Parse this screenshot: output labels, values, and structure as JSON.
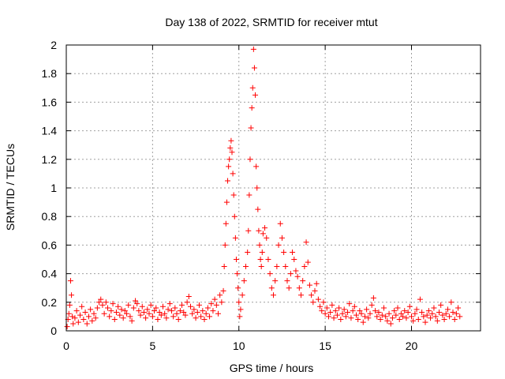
{
  "chart_data": {
    "type": "scatter",
    "title": "Day 138 of 2022, SRMTID for receiver mtut",
    "xlabel": "GPS time / hours",
    "ylabel": "SRMTID / TECUs",
    "xlim": [
      0,
      24
    ],
    "ylim": [
      0,
      2
    ],
    "xticks": [
      0,
      5,
      10,
      15,
      20
    ],
    "xtick_labels": [
      "0",
      "5",
      "10",
      "15",
      "20"
    ],
    "yticks": [
      0,
      0.2,
      0.4,
      0.6,
      0.8,
      1,
      1.2,
      1.4,
      1.6,
      1.8,
      2
    ],
    "ytick_labels": [
      "0",
      "0.2",
      "0.4",
      "0.6",
      "0.8",
      "1",
      "1.2",
      "1.4",
      "1.6",
      "1.8",
      "2"
    ],
    "grid": true,
    "marker": "+",
    "color": "#ff0000",
    "series": [
      {
        "name": "SRMTID",
        "points": [
          [
            0.05,
            0.03
          ],
          [
            0.1,
            0.08
          ],
          [
            0.15,
            0.12
          ],
          [
            0.2,
            0.18
          ],
          [
            0.25,
            0.35
          ],
          [
            0.3,
            0.25
          ],
          [
            0.35,
            0.1
          ],
          [
            0.4,
            0.05
          ],
          [
            0.5,
            0.09
          ],
          [
            0.6,
            0.14
          ],
          [
            0.7,
            0.06
          ],
          [
            0.8,
            0.11
          ],
          [
            0.9,
            0.17
          ],
          [
            1.0,
            0.08
          ],
          [
            1.1,
            0.13
          ],
          [
            1.2,
            0.05
          ],
          [
            1.3,
            0.1
          ],
          [
            1.4,
            0.15
          ],
          [
            1.5,
            0.07
          ],
          [
            1.6,
            0.12
          ],
          [
            1.7,
            0.09
          ],
          [
            1.8,
            0.16
          ],
          [
            1.9,
            0.2
          ],
          [
            2.0,
            0.22
          ],
          [
            2.1,
            0.18
          ],
          [
            2.2,
            0.12
          ],
          [
            2.3,
            0.2
          ],
          [
            2.4,
            0.16
          ],
          [
            2.5,
            0.1
          ],
          [
            2.6,
            0.14
          ],
          [
            2.7,
            0.19
          ],
          [
            2.8,
            0.08
          ],
          [
            2.9,
            0.13
          ],
          [
            3.0,
            0.17
          ],
          [
            3.1,
            0.11
          ],
          [
            3.2,
            0.15
          ],
          [
            3.3,
            0.09
          ],
          [
            3.4,
            0.14
          ],
          [
            3.5,
            0.12
          ],
          [
            3.6,
            0.18
          ],
          [
            3.7,
            0.1
          ],
          [
            3.8,
            0.07
          ],
          [
            3.9,
            0.16
          ],
          [
            4.0,
            0.21
          ],
          [
            4.1,
            0.19
          ],
          [
            4.2,
            0.14
          ],
          [
            4.3,
            0.11
          ],
          [
            4.4,
            0.17
          ],
          [
            4.5,
            0.13
          ],
          [
            4.6,
            0.09
          ],
          [
            4.7,
            0.15
          ],
          [
            4.8,
            0.12
          ],
          [
            4.9,
            0.18
          ],
          [
            5.0,
            0.1
          ],
          [
            5.1,
            0.14
          ],
          [
            5.2,
            0.16
          ],
          [
            5.3,
            0.08
          ],
          [
            5.4,
            0.13
          ],
          [
            5.5,
            0.11
          ],
          [
            5.6,
            0.17
          ],
          [
            5.7,
            0.12
          ],
          [
            5.8,
            0.09
          ],
          [
            5.9,
            0.15
          ],
          [
            6.0,
            0.19
          ],
          [
            6.1,
            0.14
          ],
          [
            6.2,
            0.1
          ],
          [
            6.3,
            0.16
          ],
          [
            6.4,
            0.12
          ],
          [
            6.5,
            0.08
          ],
          [
            6.6,
            0.14
          ],
          [
            6.7,
            0.18
          ],
          [
            6.8,
            0.13
          ],
          [
            6.9,
            0.11
          ],
          [
            7.0,
            0.2
          ],
          [
            7.1,
            0.24
          ],
          [
            7.2,
            0.17
          ],
          [
            7.3,
            0.12
          ],
          [
            7.4,
            0.15
          ],
          [
            7.5,
            0.09
          ],
          [
            7.6,
            0.13
          ],
          [
            7.7,
            0.18
          ],
          [
            7.8,
            0.1
          ],
          [
            7.9,
            0.14
          ],
          [
            8.0,
            0.08
          ],
          [
            8.1,
            0.12
          ],
          [
            8.2,
            0.16
          ],
          [
            8.3,
            0.1
          ],
          [
            8.4,
            0.19
          ],
          [
            8.5,
            0.14
          ],
          [
            8.6,
            0.22
          ],
          [
            8.7,
            0.18
          ],
          [
            8.8,
            0.12
          ],
          [
            8.9,
            0.25
          ],
          [
            9.0,
            0.2
          ],
          [
            9.1,
            0.28
          ],
          [
            9.15,
            0.45
          ],
          [
            9.2,
            0.6
          ],
          [
            9.25,
            0.75
          ],
          [
            9.3,
            0.9
          ],
          [
            9.35,
            1.05
          ],
          [
            9.4,
            1.15
          ],
          [
            9.45,
            1.2
          ],
          [
            9.5,
            1.28
          ],
          [
            9.55,
            1.33
          ],
          [
            9.6,
            1.25
          ],
          [
            9.65,
            1.1
          ],
          [
            9.7,
            0.95
          ],
          [
            9.75,
            0.8
          ],
          [
            9.8,
            0.65
          ],
          [
            9.85,
            0.5
          ],
          [
            9.9,
            0.4
          ],
          [
            9.95,
            0.3
          ],
          [
            10.0,
            0.2
          ],
          [
            10.05,
            0.1
          ],
          [
            10.1,
            0.15
          ],
          [
            10.2,
            0.25
          ],
          [
            10.3,
            0.35
          ],
          [
            10.4,
            0.45
          ],
          [
            10.5,
            0.55
          ],
          [
            10.55,
            0.7
          ],
          [
            10.6,
            0.95
          ],
          [
            10.65,
            1.2
          ],
          [
            10.7,
            1.42
          ],
          [
            10.75,
            1.56
          ],
          [
            10.8,
            1.7
          ],
          [
            10.85,
            1.97
          ],
          [
            10.9,
            1.84
          ],
          [
            10.95,
            1.65
          ],
          [
            11.0,
            1.15
          ],
          [
            11.05,
            1.0
          ],
          [
            11.1,
            0.85
          ],
          [
            11.15,
            0.7
          ],
          [
            11.2,
            0.6
          ],
          [
            11.25,
            0.5
          ],
          [
            11.3,
            0.45
          ],
          [
            11.35,
            0.55
          ],
          [
            11.4,
            0.68
          ],
          [
            11.5,
            0.72
          ],
          [
            11.6,
            0.65
          ],
          [
            11.7,
            0.5
          ],
          [
            11.8,
            0.4
          ],
          [
            11.9,
            0.3
          ],
          [
            12.0,
            0.25
          ],
          [
            12.1,
            0.35
          ],
          [
            12.2,
            0.45
          ],
          [
            12.3,
            0.6
          ],
          [
            12.4,
            0.75
          ],
          [
            12.5,
            0.65
          ],
          [
            12.6,
            0.55
          ],
          [
            12.7,
            0.45
          ],
          [
            12.8,
            0.35
          ],
          [
            12.9,
            0.3
          ],
          [
            13.0,
            0.4
          ],
          [
            13.1,
            0.55
          ],
          [
            13.2,
            0.5
          ],
          [
            13.3,
            0.42
          ],
          [
            13.4,
            0.38
          ],
          [
            13.5,
            0.3
          ],
          [
            13.6,
            0.25
          ],
          [
            13.7,
            0.35
          ],
          [
            13.8,
            0.45
          ],
          [
            13.9,
            0.62
          ],
          [
            14.0,
            0.48
          ],
          [
            14.1,
            0.32
          ],
          [
            14.2,
            0.25
          ],
          [
            14.3,
            0.2
          ],
          [
            14.4,
            0.28
          ],
          [
            14.5,
            0.33
          ],
          [
            14.6,
            0.22
          ],
          [
            14.7,
            0.17
          ],
          [
            14.8,
            0.14
          ],
          [
            14.9,
            0.2
          ],
          [
            15.0,
            0.12
          ],
          [
            15.1,
            0.16
          ],
          [
            15.2,
            0.1
          ],
          [
            15.3,
            0.13
          ],
          [
            15.4,
            0.18
          ],
          [
            15.5,
            0.09
          ],
          [
            15.6,
            0.14
          ],
          [
            15.7,
            0.11
          ],
          [
            15.8,
            0.16
          ],
          [
            15.9,
            0.08
          ],
          [
            16.0,
            0.12
          ],
          [
            16.1,
            0.15
          ],
          [
            16.2,
            0.1
          ],
          [
            16.3,
            0.13
          ],
          [
            16.4,
            0.19
          ],
          [
            16.5,
            0.09
          ],
          [
            16.6,
            0.14
          ],
          [
            16.7,
            0.17
          ],
          [
            16.8,
            0.11
          ],
          [
            16.9,
            0.08
          ],
          [
            17.0,
            0.14
          ],
          [
            17.1,
            0.12
          ],
          [
            17.2,
            0.06
          ],
          [
            17.3,
            0.1
          ],
          [
            17.4,
            0.15
          ],
          [
            17.5,
            0.09
          ],
          [
            17.6,
            0.12
          ],
          [
            17.7,
            0.18
          ],
          [
            17.8,
            0.23
          ],
          [
            17.9,
            0.14
          ],
          [
            18.0,
            0.1
          ],
          [
            18.1,
            0.13
          ],
          [
            18.2,
            0.08
          ],
          [
            18.3,
            0.11
          ],
          [
            18.4,
            0.16
          ],
          [
            18.5,
            0.1
          ],
          [
            18.6,
            0.07
          ],
          [
            18.7,
            0.12
          ],
          [
            18.8,
            0.05
          ],
          [
            18.9,
            0.09
          ],
          [
            19.0,
            0.14
          ],
          [
            19.1,
            0.11
          ],
          [
            19.2,
            0.16
          ],
          [
            19.3,
            0.08
          ],
          [
            19.4,
            0.12
          ],
          [
            19.5,
            0.1
          ],
          [
            19.6,
            0.14
          ],
          [
            19.7,
            0.09
          ],
          [
            19.8,
            0.13
          ],
          [
            19.9,
            0.17
          ],
          [
            20.0,
            0.1
          ],
          [
            20.1,
            0.07
          ],
          [
            20.2,
            0.12
          ],
          [
            20.3,
            0.15
          ],
          [
            20.4,
            0.08
          ],
          [
            20.5,
            0.22
          ],
          [
            20.6,
            0.13
          ],
          [
            20.7,
            0.1
          ],
          [
            20.8,
            0.06
          ],
          [
            20.9,
            0.11
          ],
          [
            21.0,
            0.14
          ],
          [
            21.1,
            0.09
          ],
          [
            21.2,
            0.12
          ],
          [
            21.3,
            0.16
          ],
          [
            21.4,
            0.1
          ],
          [
            21.5,
            0.07
          ],
          [
            21.6,
            0.13
          ],
          [
            21.7,
            0.18
          ],
          [
            21.8,
            0.11
          ],
          [
            21.9,
            0.08
          ],
          [
            22.0,
            0.12
          ],
          [
            22.1,
            0.15
          ],
          [
            22.2,
            0.1
          ],
          [
            22.3,
            0.2
          ],
          [
            22.4,
            0.13
          ],
          [
            22.5,
            0.08
          ],
          [
            22.6,
            0.12
          ],
          [
            22.7,
            0.16
          ],
          [
            22.8,
            0.1
          ]
        ]
      }
    ]
  }
}
